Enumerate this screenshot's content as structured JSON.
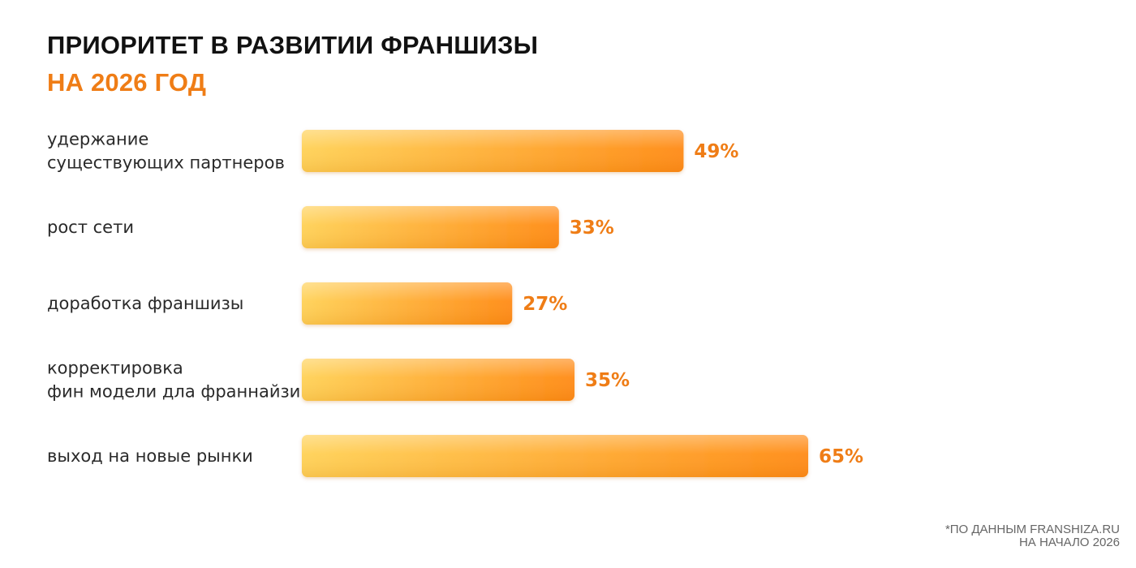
{
  "chart_data": {
    "type": "bar",
    "orientation": "horizontal",
    "title": "ПРИОРИТЕТ В РАЗВИТИИ ФРАНШИЗЫ",
    "subtitle": "НА 2026 ГОД",
    "categories": [
      [
        "удержание",
        "существующих партнеров"
      ],
      [
        "рост сети"
      ],
      [
        "доработка франшизы"
      ],
      [
        "корректировка",
        "фин модели дла франнайзи"
      ],
      [
        "выход на новые рынки"
      ]
    ],
    "values": [
      49,
      33,
      27,
      35,
      65
    ],
    "value_labels": [
      "49%",
      "33%",
      "27%",
      "35%",
      "65%"
    ],
    "value_unit": "%",
    "grid": false,
    "legend": "none",
    "colors": {
      "bar_start": "#ffd155",
      "bar_end": "#ff8a12",
      "value_text": "#ef7d16",
      "title": "#111111",
      "subtitle": "#ef7d16"
    }
  },
  "footnote": {
    "line1": "*ПО ДАННЫМ FRANSHIZA.RU",
    "line2": "НА НАЧАЛО 2026"
  }
}
